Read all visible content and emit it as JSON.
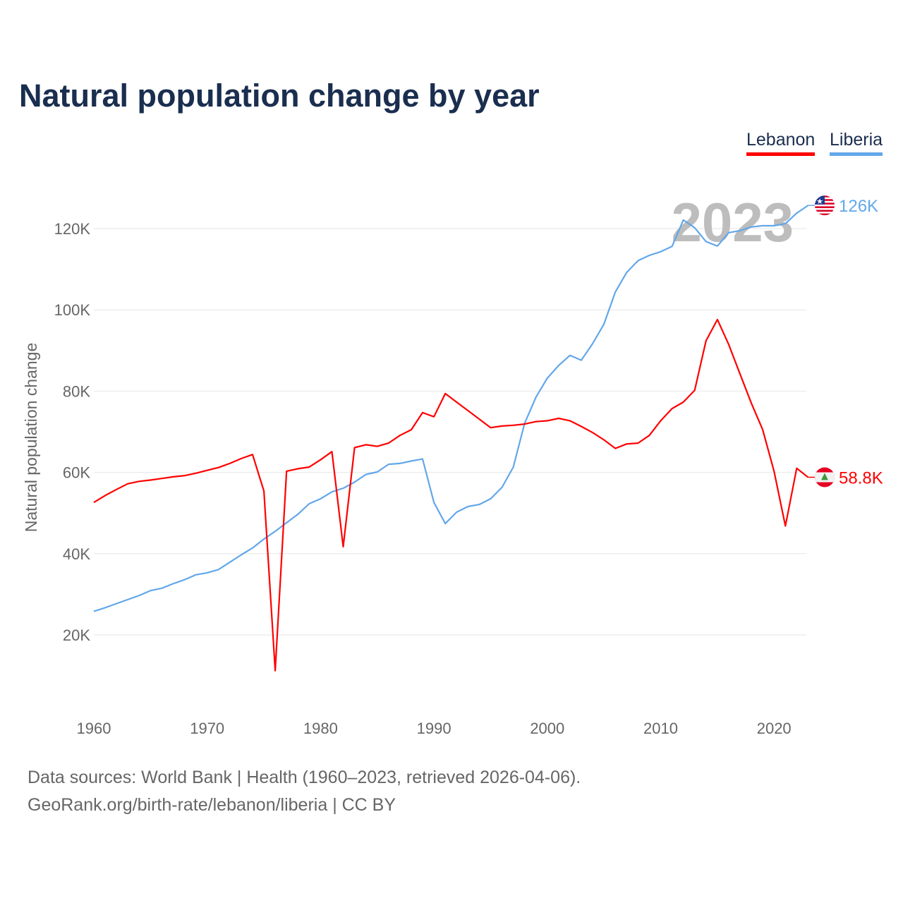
{
  "title": "Natural population change by year",
  "footer": {
    "line1": "Data sources: World Bank | Health (1960–2023, retrieved 2026-04-06).",
    "line2": "GeoRank.org/birth-rate/lebanon/liberia | CC BY"
  },
  "chart_data": {
    "type": "line",
    "title": "Natural population change by year",
    "xlabel": "",
    "ylabel": "Natural population change",
    "xlim": [
      1960,
      2023
    ],
    "ylim": [
      0,
      130000
    ],
    "grid": true,
    "legend_placement": "top-right",
    "year_watermark": "2023",
    "x_ticks": [
      1960,
      1970,
      1980,
      1990,
      2000,
      2010,
      2020
    ],
    "y_ticks": [
      20000,
      40000,
      60000,
      80000,
      100000,
      120000
    ],
    "y_tick_labels": [
      "20K",
      "40K",
      "60K",
      "80K",
      "100K",
      "120K"
    ],
    "x_tick_labels": [
      "1960",
      "1970",
      "1980",
      "1990",
      "2000",
      "2010",
      "2020"
    ],
    "series": [
      {
        "name": "Lebanon",
        "color": "#ff0000",
        "end_label": "58.8K",
        "flag": "lebanon-flag",
        "values": [
          52600,
          54300,
          55800,
          57200,
          57800,
          58100,
          58500,
          58900,
          59200,
          59800,
          60500,
          61200,
          62200,
          63400,
          64400,
          55400,
          11200,
          60300,
          60900,
          61300,
          63100,
          65100,
          41700,
          66100,
          66800,
          66400,
          67200,
          69100,
          70500,
          74700,
          73700,
          79400,
          77300,
          75200,
          73100,
          71000,
          71400,
          71600,
          71900,
          72500,
          72700,
          73300,
          72700,
          71300,
          69800,
          68000,
          65900,
          67000,
          67200,
          69100,
          72700,
          75700,
          77300,
          80200,
          92400,
          97600,
          91500,
          84200,
          77000,
          70500,
          60300,
          46800,
          61000,
          58800
        ]
      },
      {
        "name": "Liberia",
        "color": "#63a7ea",
        "end_label": "126K",
        "flag": "liberia-flag",
        "values": [
          25800,
          26700,
          27700,
          28700,
          29700,
          30900,
          31500,
          32600,
          33600,
          34800,
          35300,
          36100,
          37900,
          39700,
          41400,
          43600,
          45500,
          47600,
          49700,
          52300,
          53500,
          55200,
          56100,
          57600,
          59500,
          60100,
          62000,
          62200,
          62800,
          63300,
          52600,
          47400,
          50200,
          51600,
          52100,
          53500,
          56300,
          61300,
          72100,
          78500,
          83200,
          86300,
          88800,
          87600,
          91700,
          96500,
          104400,
          109200,
          112100,
          113400,
          114300,
          115600,
          122100,
          120200,
          116800,
          115700,
          119000,
          119500,
          120400,
          120700,
          120700,
          121200,
          123800,
          125700
        ]
      }
    ]
  }
}
